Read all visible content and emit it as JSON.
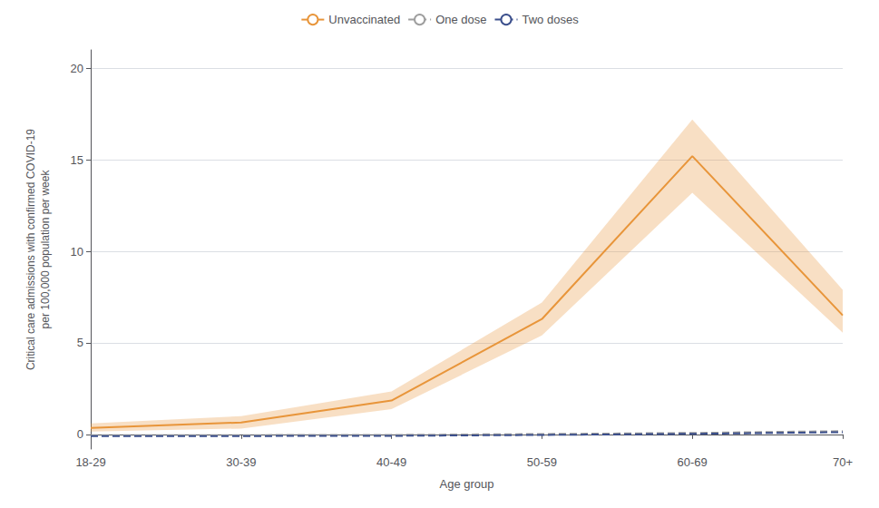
{
  "chart_data": {
    "type": "line",
    "xlabel": "Age group",
    "ylabel": "Critical care admissions with confirmed COVID-19\nper 100,000 population per week",
    "categories": [
      "18-29",
      "30-39",
      "40-49",
      "50-59",
      "60-69",
      "70+"
    ],
    "series": [
      {
        "name": "Unvaccinated",
        "color": "#E8953A",
        "line_style": "solid",
        "values": [
          0.35,
          0.65,
          1.85,
          6.3,
          15.2,
          6.5
        ],
        "upper": [
          0.6,
          1.0,
          2.35,
          7.2,
          17.2,
          7.9
        ],
        "lower": [
          0.15,
          0.32,
          1.38,
          5.4,
          13.2,
          5.55
        ]
      },
      {
        "name": "One dose",
        "color": "#9E9E9E",
        "line_style": "dashed",
        "values": [
          -0.05,
          -0.04,
          -0.03,
          0.02,
          0.08,
          0.18
        ]
      },
      {
        "name": "Two doses",
        "color": "#3B4F8C",
        "line_style": "dashed",
        "values": [
          -0.1,
          -0.09,
          -0.08,
          -0.03,
          0.03,
          0.12
        ]
      }
    ],
    "ylim": [
      -0.8,
      21
    ],
    "yticks": [
      0,
      5,
      10,
      15,
      20
    ],
    "grid": true,
    "legend": "top"
  }
}
